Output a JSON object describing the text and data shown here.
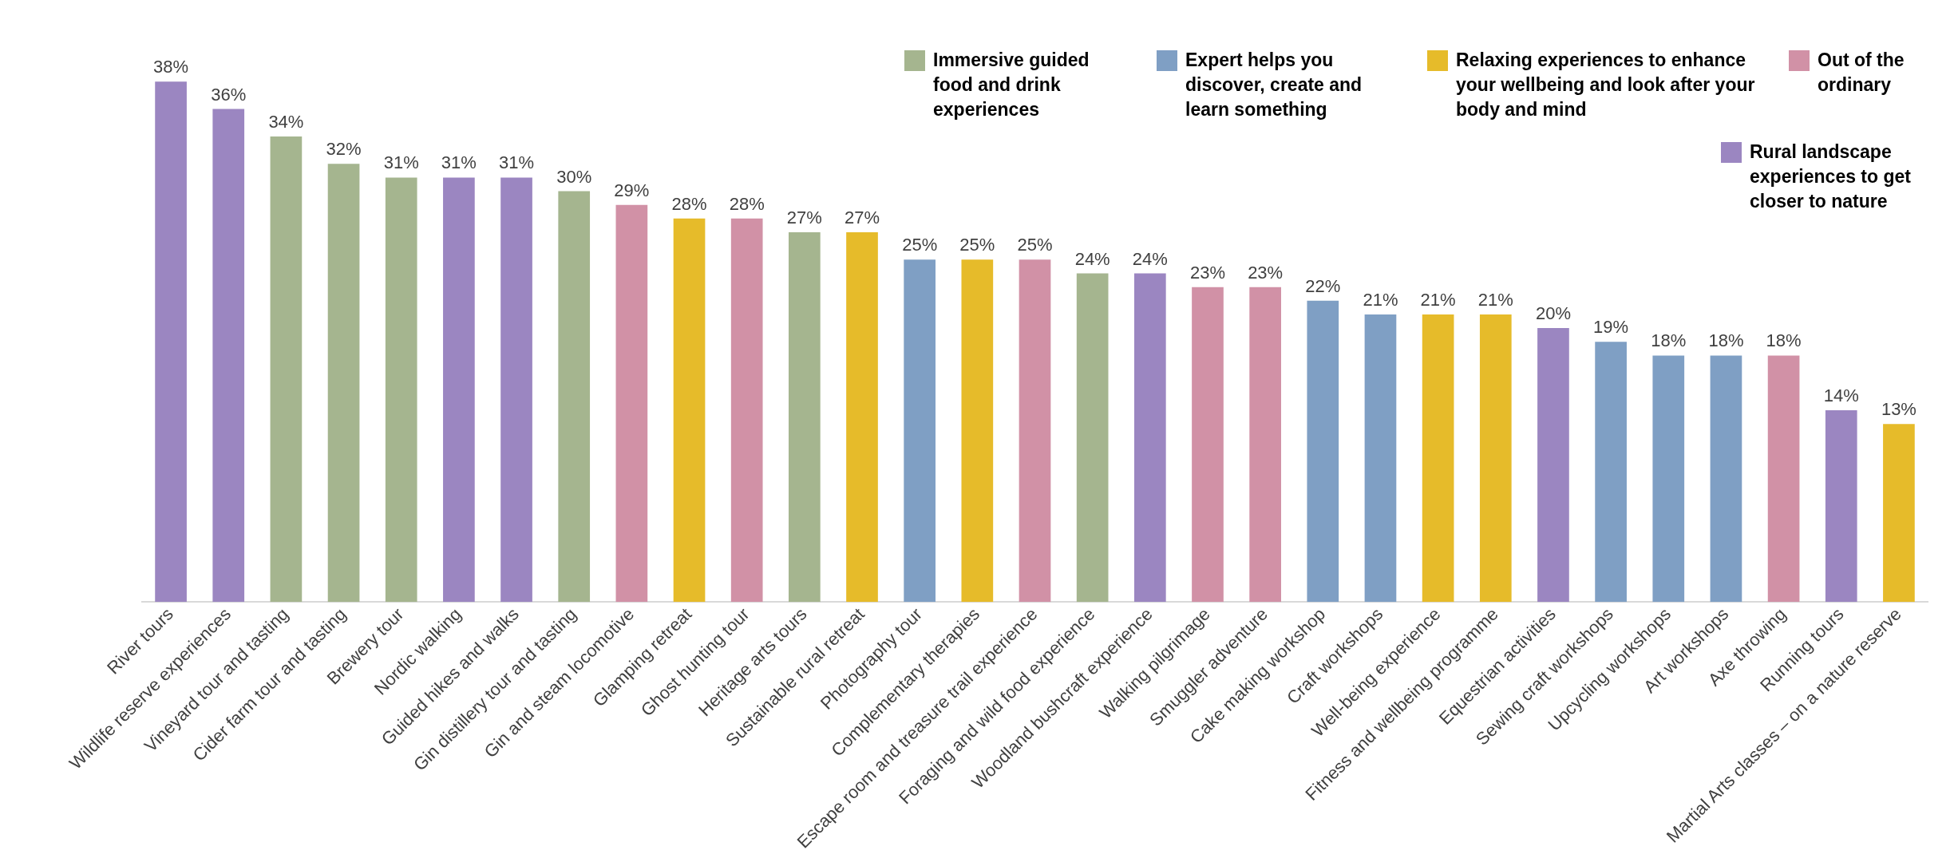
{
  "chart_data": {
    "type": "bar",
    "stacked": true,
    "legend": "top right",
    "categories": [
      "River tours",
      "Wildlife reserve experiences",
      "Vineyard tour and tasting",
      "Cider farm tour and tasting",
      "Brewery tour",
      "Nordic walking",
      "Guided hikes and walks",
      "Gin distillery tour and tasting",
      "Gin and steam locomotive",
      "Glamping retreat",
      "Ghost hunting tour",
      "Heritage arts tours",
      "Sustainable rural retreat",
      "Photography tour",
      "Complementary therapies",
      "Escape room and treasure trail experience",
      "Foraging and wild food experience",
      "Woodland bushcraft experience",
      "Walking pilgrimage",
      "Smuggler adventure",
      "Cake making workshop",
      "Craft workshops",
      "Well-being experience",
      "Fitness and wellbeing programme",
      "Equestrian activities",
      "Sewing craft workshops",
      "Upcycling workshops",
      "Art workshops",
      "Axe throwing",
      "Running tours",
      "Martial Arts classes – on a nature reserve"
    ],
    "series": [
      {
        "name": "Immersive guided food and drink experiences",
        "color": "#a5b58f",
        "values": [
          null,
          null,
          34,
          32,
          31,
          null,
          null,
          30,
          null,
          null,
          null,
          27,
          null,
          null,
          null,
          null,
          24,
          null,
          null,
          null,
          null,
          null,
          null,
          null,
          null,
          null,
          null,
          null,
          null,
          null,
          null
        ],
        "value_labels": [
          null,
          null,
          "34%",
          "32%",
          "31%",
          null,
          null,
          "30%",
          null,
          null,
          null,
          "27%",
          null,
          null,
          null,
          null,
          "24%",
          null,
          null,
          null,
          null,
          null,
          null,
          null,
          null,
          null,
          null,
          null,
          null,
          null,
          null
        ]
      },
      {
        "name": "Expert helps you discover, create and learn something",
        "color": "#7f9fc4",
        "values": [
          null,
          null,
          null,
          null,
          null,
          null,
          null,
          null,
          null,
          null,
          null,
          null,
          null,
          25,
          null,
          null,
          null,
          null,
          null,
          null,
          22,
          21,
          null,
          null,
          null,
          19,
          18,
          18,
          null,
          null,
          null
        ],
        "value_labels": [
          null,
          null,
          null,
          null,
          null,
          null,
          null,
          null,
          null,
          null,
          null,
          null,
          null,
          "25%",
          null,
          null,
          null,
          null,
          null,
          null,
          "22%",
          "21%",
          null,
          null,
          null,
          "19%",
          "18%",
          "18%",
          null,
          null,
          null
        ]
      },
      {
        "name": "Relaxing experiences to enhance your wellbeing and look after your body and mind",
        "color": "#e6bb2a",
        "values": [
          null,
          null,
          null,
          null,
          null,
          null,
          null,
          null,
          null,
          28,
          null,
          null,
          27,
          null,
          25,
          null,
          null,
          null,
          null,
          null,
          null,
          null,
          21,
          21,
          null,
          null,
          null,
          null,
          null,
          null,
          13
        ],
        "value_labels": [
          null,
          null,
          null,
          null,
          null,
          null,
          null,
          null,
          null,
          "28%",
          null,
          null,
          "27%",
          null,
          "25%",
          null,
          null,
          null,
          null,
          null,
          null,
          null,
          "21%",
          "21%",
          null,
          null,
          null,
          null,
          null,
          null,
          "13%"
        ]
      },
      {
        "name": "Out of the ordinary",
        "color": "#d191a6",
        "values": [
          null,
          null,
          null,
          null,
          null,
          null,
          null,
          null,
          29,
          null,
          28,
          null,
          null,
          null,
          null,
          25,
          null,
          null,
          23,
          23,
          null,
          null,
          null,
          null,
          null,
          null,
          null,
          null,
          18,
          null,
          null
        ],
        "value_labels": [
          null,
          null,
          null,
          null,
          null,
          null,
          null,
          null,
          "29%",
          null,
          "28%",
          null,
          null,
          null,
          null,
          "25%",
          null,
          null,
          "23%",
          "23%",
          null,
          null,
          null,
          null,
          null,
          null,
          null,
          null,
          "18%",
          null,
          null
        ]
      },
      {
        "name": "Rural landscape experiences to get closer to nature",
        "color": "#9b86c1",
        "values": [
          38,
          36,
          null,
          null,
          null,
          31,
          31,
          null,
          null,
          null,
          null,
          null,
          null,
          null,
          null,
          null,
          null,
          24,
          null,
          null,
          null,
          null,
          null,
          null,
          20,
          null,
          null,
          null,
          null,
          14,
          null
        ],
        "value_labels": [
          "38%",
          "36%",
          null,
          null,
          null,
          "31%",
          "31%",
          null,
          null,
          null,
          null,
          null,
          null,
          null,
          null,
          null,
          null,
          "24%",
          null,
          null,
          null,
          null,
          null,
          null,
          "20%",
          null,
          null,
          null,
          null,
          "14%",
          null
        ]
      }
    ]
  }
}
